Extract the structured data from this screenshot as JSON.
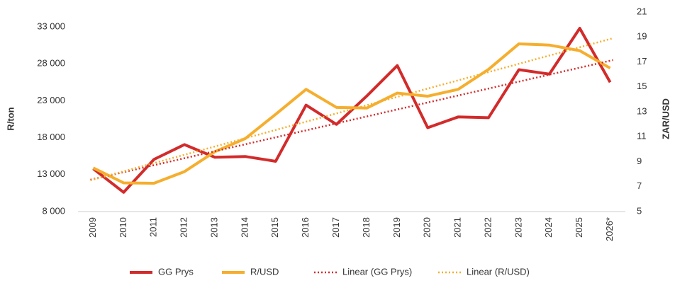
{
  "chart_data": {
    "type": "line",
    "ylabel": "R/ton",
    "y2label": "ZAR/USD",
    "categories": [
      "2009",
      "2010",
      "2011",
      "2012",
      "2013",
      "2014",
      "2015",
      "2016",
      "2017",
      "2018",
      "2019",
      "2020",
      "2021",
      "2022",
      "2023",
      "2024",
      "2025",
      "2026*"
    ],
    "series": [
      {
        "name": "GG Prys",
        "color": "#d22b2b",
        "axis": "y",
        "values": [
          13800,
          10600,
          15060,
          17060,
          15350,
          15450,
          14800,
          22400,
          19800,
          23650,
          27750,
          19350,
          20800,
          20700,
          27200,
          26600,
          32800,
          25500
        ]
      },
      {
        "name": "R/USD",
        "color": "#f5ae2d",
        "axis": "y2",
        "values": [
          8.5,
          7.3,
          7.27,
          8.2,
          9.8,
          10.85,
          12.8,
          14.8,
          13.35,
          13.3,
          14.5,
          14.25,
          14.8,
          16.4,
          18.45,
          18.35,
          17.9,
          16.5
        ]
      },
      {
        "name": "Linear (GG Prys)",
        "color": "#d22b2b",
        "axis": "y",
        "style": "dotted",
        "trend_ends": [
          12300,
          28500
        ]
      },
      {
        "name": "Linear (R/USD)",
        "color": "#f5ae2d",
        "axis": "y2",
        "style": "dotted",
        "trend_ends": [
          7.5,
          18.9
        ]
      }
    ],
    "ylim": [
      8000,
      35000
    ],
    "yticks": [
      {
        "value": 8000,
        "label": "8 000"
      },
      {
        "value": 13000,
        "label": "13 000"
      },
      {
        "value": 18000,
        "label": "18 000"
      },
      {
        "value": 23000,
        "label": "23 000"
      },
      {
        "value": 28000,
        "label": "28 000"
      },
      {
        "value": 33000,
        "label": "33 000"
      }
    ],
    "y2lim": [
      5,
      21
    ],
    "y2ticks": [
      5,
      7,
      9,
      11,
      13,
      15,
      17,
      19,
      21
    ],
    "grid": false,
    "legend": "bottom"
  }
}
